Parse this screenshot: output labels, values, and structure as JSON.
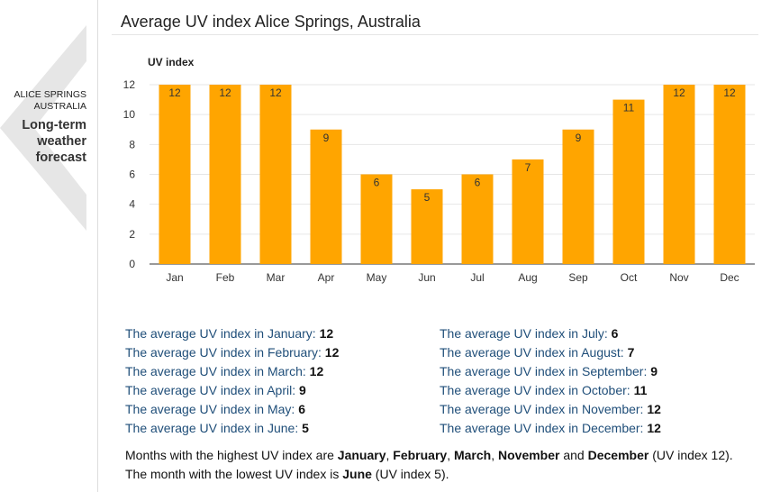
{
  "sidebar": {
    "city_line1": "ALICE SPRINGS",
    "city_line2": "AUSTRALIA",
    "title_line1": "Long-term",
    "title_line2": "weather",
    "title_line3": "forecast"
  },
  "page_title": "Average UV index Alice Springs, Australia",
  "chart_data": {
    "type": "bar",
    "ylabel": "UV index",
    "categories": [
      "Jan",
      "Feb",
      "Mar",
      "Apr",
      "May",
      "Jun",
      "Jul",
      "Aug",
      "Sep",
      "Oct",
      "Nov",
      "Dec"
    ],
    "values": [
      12,
      12,
      12,
      9,
      6,
      5,
      6,
      7,
      9,
      11,
      12,
      12
    ],
    "ylim": [
      0,
      12
    ],
    "yticks": [
      0,
      2,
      4,
      6,
      8,
      10,
      12
    ],
    "grid": true,
    "bar_color": "#FFA500"
  },
  "stats_left": [
    {
      "label": "The average UV index in January: ",
      "value": "12"
    },
    {
      "label": "The average UV index in February: ",
      "value": "12"
    },
    {
      "label": "The average UV index in March: ",
      "value": "12"
    },
    {
      "label": "The average UV index in April: ",
      "value": "9"
    },
    {
      "label": "The average UV index in May: ",
      "value": "6"
    },
    {
      "label": "The average UV index in June: ",
      "value": "5"
    }
  ],
  "stats_right": [
    {
      "label": "The average UV index in July: ",
      "value": "6"
    },
    {
      "label": "The average UV index in August: ",
      "value": "7"
    },
    {
      "label": "The average UV index in September: ",
      "value": "9"
    },
    {
      "label": "The average UV index in October: ",
      "value": "11"
    },
    {
      "label": "The average UV index in November: ",
      "value": "12"
    },
    {
      "label": "The average UV index in December: ",
      "value": "12"
    }
  ],
  "summary": {
    "highest_prefix": "Months with the highest UV index are ",
    "highest_m1": "January",
    "sep1": ", ",
    "highest_m2": "February",
    "sep2": ", ",
    "highest_m3": "March",
    "sep3": ", ",
    "highest_m4": "November",
    "sep_and": " and ",
    "highest_m5": "December",
    "highest_suffix": " (UV index 12).",
    "lowest_prefix": "The month with the lowest UV index is ",
    "lowest_month": "June",
    "lowest_suffix": " (UV index 5)."
  }
}
